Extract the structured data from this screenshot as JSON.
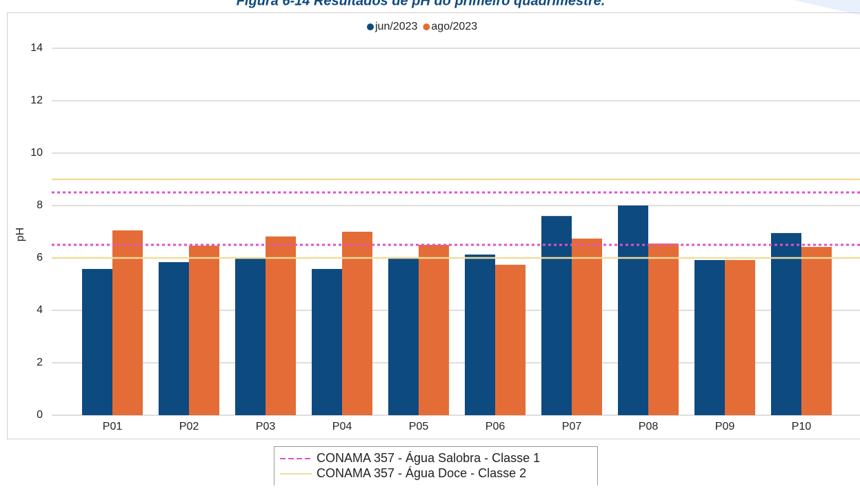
{
  "chart_data": {
    "type": "bar",
    "title": "Figura 6-14 Resultados de pH do primeiro quadrimestre.",
    "y_label": "pH",
    "categories": [
      "P01",
      "P02",
      "P03",
      "P04",
      "P05",
      "P06",
      "P07",
      "P08",
      "P09",
      "P10"
    ],
    "series": [
      {
        "name": "jun/2023",
        "color": "#0d4a80",
        "values": [
          5.58,
          5.84,
          5.97,
          5.58,
          6.03,
          6.13,
          7.6,
          8.0,
          5.92,
          6.95
        ]
      },
      {
        "name": "ago/2023",
        "color": "#e46c36",
        "values": [
          7.05,
          6.47,
          6.82,
          7.0,
          6.5,
          5.74,
          6.74,
          6.55,
          5.92,
          6.42
        ]
      }
    ],
    "reference_lines": [
      {
        "name": "CONAMA 357 - Água Salobra - Classe 1",
        "color": "#e052c8",
        "style": "dashed",
        "values": [
          6.5,
          8.5
        ]
      },
      {
        "name": "CONAMA 357 - Água Doce - Classe 2",
        "color": "#f0dc9a",
        "style": "solid",
        "values": [
          6,
          9
        ]
      }
    ],
    "ylim": [
      0,
      14
    ],
    "yticks": [
      0,
      2,
      4,
      6,
      8,
      10,
      12,
      14
    ],
    "grid": true
  }
}
